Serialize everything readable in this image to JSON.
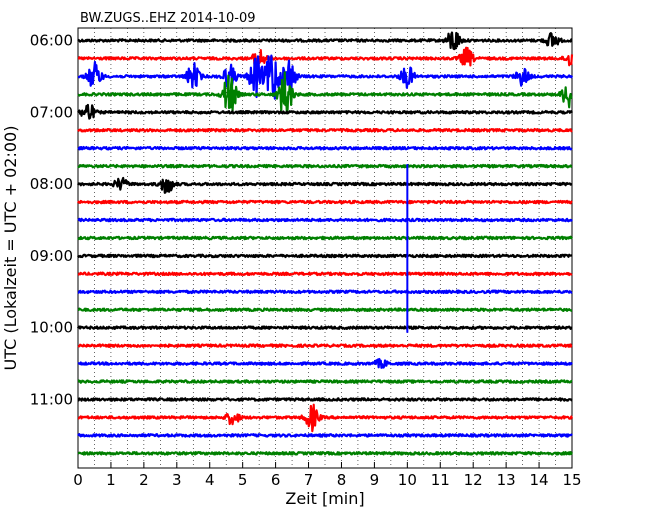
{
  "chart_data": {
    "type": "line",
    "title": "BW.ZUGS..EHZ 2014-10-09",
    "xlabel": "Zeit  [min]",
    "ylabel": "UTC (Lokalzeit = UTC + 02:00)",
    "xlim": [
      0,
      15
    ],
    "xticks": [
      "0",
      "1",
      "2",
      "3",
      "4",
      "5",
      "6",
      "7",
      "8",
      "9",
      "10",
      "11",
      "12",
      "13",
      "14",
      "15"
    ],
    "y_tick_labels": [
      "06:00",
      "07:00",
      "08:00",
      "09:00",
      "10:00",
      "11:00"
    ],
    "line_spacing_minutes": 15,
    "trace_count": 24,
    "first_trace_start": "06:00",
    "grid": "vertical dotted",
    "series_colors": [
      "#000000",
      "#ff0000",
      "#0000ff",
      "#008000"
    ],
    "events": [
      {
        "trace": 0,
        "minute": 11.4,
        "amp": 1.2
      },
      {
        "trace": 0,
        "minute": 14.4,
        "amp": 0.8
      },
      {
        "trace": 1,
        "minute": 5.5,
        "amp": 0.9
      },
      {
        "trace": 1,
        "minute": 11.8,
        "amp": 1.0
      },
      {
        "trace": 1,
        "minute": 15.0,
        "amp": 0.9
      },
      {
        "trace": 2,
        "minute": 0.5,
        "amp": 1.4
      },
      {
        "trace": 2,
        "minute": 3.5,
        "amp": 1.3
      },
      {
        "trace": 2,
        "minute": 4.6,
        "amp": 1.2
      },
      {
        "trace": 2,
        "minute": 5.4,
        "amp": 2.2
      },
      {
        "trace": 2,
        "minute": 5.9,
        "amp": 3.0
      },
      {
        "trace": 2,
        "minute": 6.4,
        "amp": 2.0
      },
      {
        "trace": 2,
        "minute": 10.0,
        "amp": 1.1
      },
      {
        "trace": 2,
        "minute": 13.5,
        "amp": 0.9
      },
      {
        "trace": 3,
        "minute": 4.6,
        "amp": 2.2
      },
      {
        "trace": 3,
        "minute": 6.3,
        "amp": 2.5
      },
      {
        "trace": 3,
        "minute": 14.9,
        "amp": 1.4
      },
      {
        "trace": 4,
        "minute": 0.3,
        "amp": 1.0
      },
      {
        "trace": 8,
        "minute": 1.3,
        "amp": 0.6
      },
      {
        "trace": 8,
        "minute": 2.7,
        "amp": 1.0
      },
      {
        "trace": 21,
        "minute": 4.7,
        "amp": 0.7
      },
      {
        "trace": 21,
        "minute": 7.1,
        "amp": 1.3
      },
      {
        "trace": 18,
        "minute": 9.2,
        "amp": 0.4
      }
    ],
    "spike": {
      "minute": 10.0,
      "from_trace": 7,
      "to_trace": 16
    }
  }
}
